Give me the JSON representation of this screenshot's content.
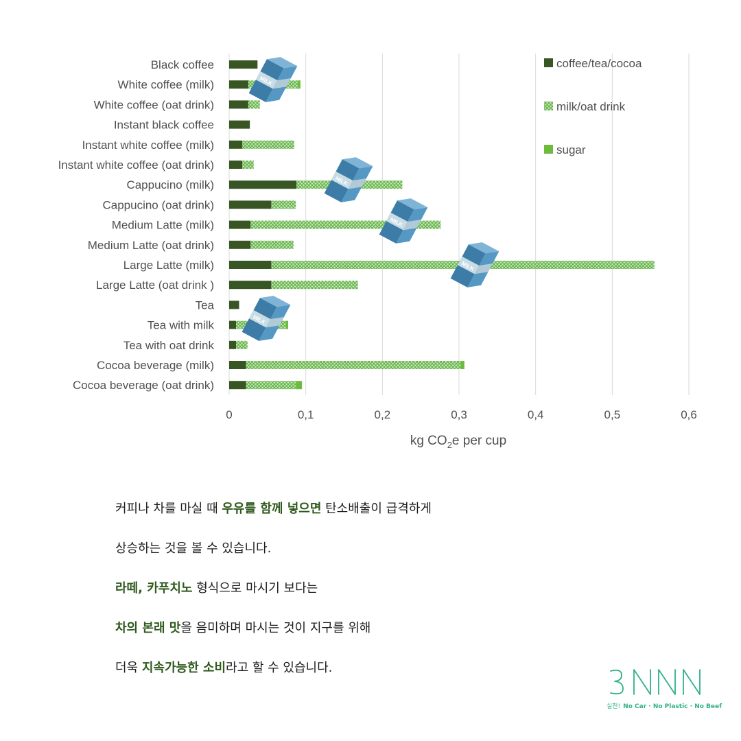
{
  "chart_data": {
    "type": "bar",
    "orientation": "horizontal",
    "stacked": true,
    "xlabel": "kg CO2e per cup",
    "xlim": [
      0,
      0.6
    ],
    "x_ticks": [
      "0",
      "0,1",
      "0,2",
      "0,3",
      "0,4",
      "0,5",
      "0,6"
    ],
    "grid": "vertical",
    "legend_position": "top-right",
    "categories": [
      "Black coffee",
      "White coffee (milk)",
      "White coffee (oat drink)",
      "Instant black coffee",
      "Instant white coffee (milk)",
      "Instant white coffee (oat drink)",
      "Cappucino (milk)",
      "Cappucino (oat drink)",
      "Medium Latte (milk) ",
      "Medium Latte (oat drink) ",
      "Large Latte (milk) ",
      "Large Latte (oat drink )",
      "Tea",
      "Tea with milk",
      "Tea with oat drink",
      "Cocoa beverage (milk)",
      "Cocoa beverage (oat drink)"
    ],
    "series": [
      {
        "name": "coffee/tea/cocoa",
        "color": "#375623",
        "values": [
          0.037,
          0.025,
          0.025,
          0.027,
          0.017,
          0.017,
          0.088,
          0.055,
          0.028,
          0.028,
          0.055,
          0.055,
          0.013,
          0.009,
          0.009,
          0.022,
          0.022
        ]
      },
      {
        "name": "milk/oat drink",
        "color": "#8fd07a",
        "values": [
          0.0,
          0.065,
          0.015,
          0.0,
          0.068,
          0.015,
          0.138,
          0.032,
          0.248,
          0.056,
          0.5,
          0.113,
          0.0,
          0.065,
          0.015,
          0.28,
          0.065
        ]
      },
      {
        "name": "sugar",
        "color": "#6cbb3c",
        "values": [
          0.0,
          0.003,
          0.0,
          0.0,
          0.0,
          0.0,
          0.0,
          0.0,
          0.0,
          0.0,
          0.0,
          0.0,
          0.0,
          0.003,
          0.0,
          0.005,
          0.008
        ]
      }
    ]
  },
  "milk_carton": {
    "label": "MILK",
    "icon": "milk-carton-icon",
    "colors": {
      "front": "#3c7ca6",
      "side": "#5598c4",
      "top": "#7fb4d6",
      "band": "#c8dce6"
    }
  },
  "text_block": {
    "line1": {
      "a": "커피나 차를 마실 때 ",
      "b": "우유를 함께 넣으면",
      "c": " 탄소배출이 급격하게"
    },
    "line2": {
      "a": "상승하는 것을 볼 수 있습니다."
    },
    "line3": {
      "a": "라떼, 카푸치노",
      "b": " 형식으로 마시기 보다는"
    },
    "line4": {
      "a": "차의 본래 맛",
      "b": "을 음미하며 마시는 것이 지구를 위해"
    },
    "line5": {
      "a": "더욱 ",
      "b": "지속가능한 소비",
      "c": "라고 할 수 있습니다."
    }
  },
  "logo": {
    "mark": "3NNN",
    "sub_korean": "실천!",
    "tagline": "No Car · No Plastic · No Beef",
    "color": "#2fb08a"
  }
}
